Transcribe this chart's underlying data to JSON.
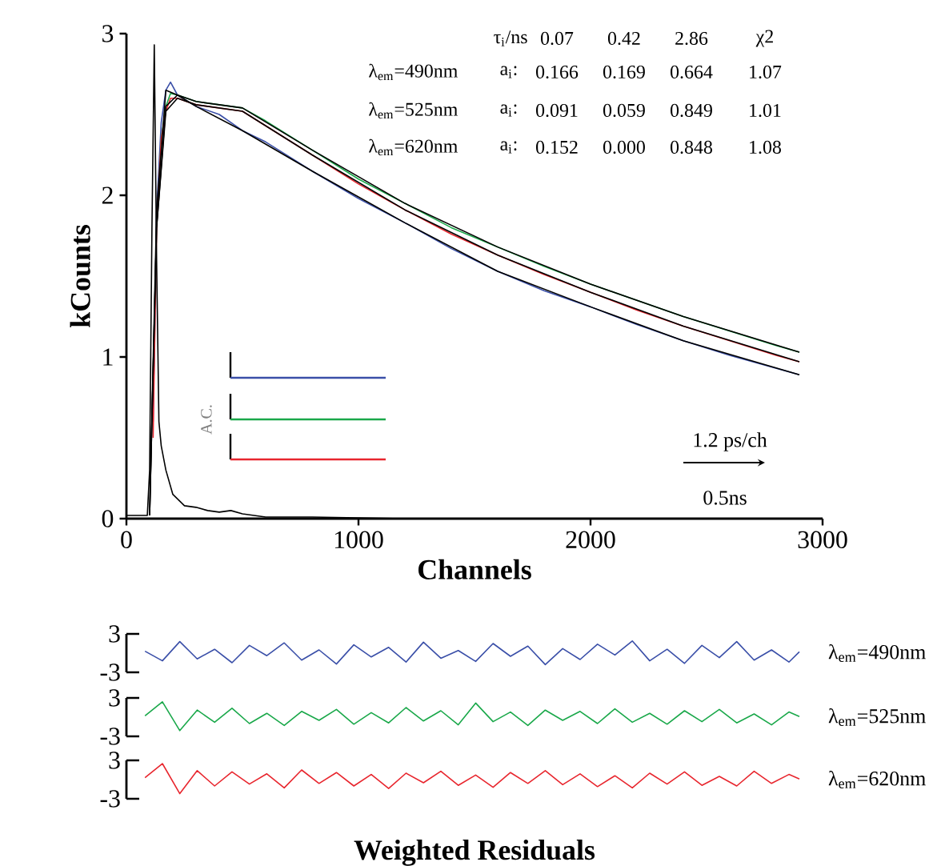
{
  "chart_data": [
    {
      "type": "line",
      "xlabel": "Channels",
      "ylabel": "kCounts",
      "xlim": [
        0,
        3000
      ],
      "ylim": [
        0,
        3
      ],
      "xticks": [
        0,
        1000,
        2000,
        3000
      ],
      "yticks": [
        0,
        1,
        2,
        3
      ],
      "annotations": [
        "τ$_{i}$/ns",
        "0.07",
        "0.42",
        "2.86",
        "χ2",
        "λ$_{em}$=490nm",
        "a$_{i}$:",
        "0.166",
        "0.169",
        "0.664",
        "1.07",
        "λ$_{em}$=525nm",
        "a$_{i}$:",
        "0.091",
        "0.059",
        "0.849",
        "1.01",
        "λ$_{em}$=620nm",
        "a$_{i}$:",
        "0.152",
        "0.000",
        "0.848",
        "1.08",
        "1.2 ps/ch",
        "0.5ns",
        "A.C."
      ],
      "series": [
        {
          "color": "#3a4fa8",
          "x": [
            115,
            130,
            150,
            170,
            190,
            220,
            300,
            400,
            500,
            600,
            800,
            1000,
            1200,
            1400,
            1600,
            1800,
            2000,
            2200,
            2400,
            2600,
            2800,
            2900
          ],
          "values": [
            0.6,
            1.9,
            2.45,
            2.65,
            2.7,
            2.62,
            2.55,
            2.5,
            2.4,
            2.33,
            2.15,
            1.98,
            1.83,
            1.67,
            1.53,
            1.41,
            1.31,
            1.2,
            1.1,
            1.01,
            0.93,
            0.89
          ]
        },
        {
          "color": "#1aa84a",
          "x": [
            130,
            150,
            170,
            190,
            220,
            300,
            400,
            500,
            600,
            800,
            1000,
            1200,
            1400,
            1600,
            1800,
            2000,
            2200,
            2400,
            2600,
            2800,
            2900
          ],
          "values": [
            1.8,
            2.35,
            2.55,
            2.63,
            2.62,
            2.58,
            2.56,
            2.54,
            2.46,
            2.28,
            2.1,
            1.95,
            1.8,
            1.68,
            1.56,
            1.45,
            1.35,
            1.25,
            1.16,
            1.07,
            1.03
          ]
        },
        {
          "color": "#e8262e",
          "x": [
            115,
            130,
            150,
            170,
            190,
            220,
            300,
            400,
            500,
            600,
            800,
            1000,
            1200,
            1400,
            1600,
            1800,
            2000,
            2200,
            2400,
            2600,
            2800,
            2900
          ],
          "values": [
            0.5,
            1.8,
            2.35,
            2.52,
            2.6,
            2.6,
            2.56,
            2.54,
            2.52,
            2.43,
            2.25,
            2.07,
            1.91,
            1.76,
            1.63,
            1.51,
            1.4,
            1.29,
            1.19,
            1.1,
            1.01,
            0.97
          ]
        },
        {
          "color": "#000000",
          "x": [
            100,
            130,
            170,
            220,
            300,
            500,
            800,
            1200,
            1600,
            2000,
            2400,
            2900
          ],
          "values": [
            0.02,
            1.9,
            2.65,
            2.62,
            2.55,
            2.4,
            2.15,
            1.83,
            1.53,
            1.31,
            1.1,
            0.89
          ]
        },
        {
          "color": "#000000",
          "x": [
            100,
            130,
            170,
            220,
            300,
            500,
            800,
            1200,
            1600,
            2000,
            2400,
            2900
          ],
          "values": [
            0.02,
            1.8,
            2.55,
            2.62,
            2.58,
            2.54,
            2.28,
            1.95,
            1.68,
            1.45,
            1.25,
            1.03
          ]
        },
        {
          "color": "#000000",
          "x": [
            100,
            130,
            170,
            220,
            300,
            500,
            800,
            1200,
            1600,
            2000,
            2400,
            2900
          ],
          "values": [
            0.02,
            1.8,
            2.52,
            2.6,
            2.56,
            2.52,
            2.25,
            1.91,
            1.63,
            1.4,
            1.19,
            0.97
          ]
        },
        {
          "color": "#000000",
          "x": [
            0,
            90,
            100,
            110,
            120,
            130,
            140,
            150,
            170,
            200,
            250,
            300,
            350,
            400,
            450,
            500,
            600,
            800,
            1200,
            2900
          ],
          "values": [
            0.02,
            0.02,
            0.3,
            1.8,
            2.93,
            1.6,
            0.6,
            0.45,
            0.3,
            0.15,
            0.08,
            0.07,
            0.05,
            0.04,
            0.05,
            0.03,
            0.01,
            0.01,
            0,
            0
          ]
        }
      ]
    },
    {
      "type": "line",
      "tick_labels": "y",
      "xlim": [
        0,
        3000
      ],
      "ylim": [
        -3,
        3
      ],
      "yticks": [
        -3,
        3
      ],
      "series": [
        {
          "name": "λ$_{em}$=490nm",
          "color": "#3a4fa8",
          "x": [
            80,
            155,
            230,
            305,
            380,
            455,
            530,
            605,
            680,
            755,
            830,
            905,
            980,
            1055,
            1130,
            1205,
            1280,
            1355,
            1430,
            1505,
            1580,
            1655,
            1730,
            1805,
            1880,
            1955,
            2030,
            2105,
            2180,
            2255,
            2330,
            2405,
            2480,
            2555,
            2630,
            2705,
            2780,
            2855,
            2900
          ],
          "values": [
            0.3,
            -1.2,
            1.8,
            -0.9,
            0.6,
            -1.5,
            1.2,
            -0.4,
            1.6,
            -1.1,
            0.5,
            -1.7,
            1.3,
            -0.6,
            0.9,
            -1.4,
            1.7,
            -0.8,
            0.4,
            -1.3,
            1.5,
            -0.5,
            1.1,
            -1.8,
            0.7,
            -1.0,
            1.4,
            -0.3,
            1.9,
            -1.2,
            0.6,
            -1.6,
            1.2,
            -0.7,
            1.8,
            -1.1,
            0.5,
            -1.4,
            0.2
          ]
        }
      ]
    },
    {
      "type": "line",
      "tick_labels": "y",
      "xlim": [
        0,
        3000
      ],
      "ylim": [
        -3,
        3
      ],
      "yticks": [
        -3,
        3
      ],
      "series": [
        {
          "name": "λ$_{em}$=525nm",
          "color": "#1aa84a",
          "x": [
            80,
            155,
            230,
            305,
            380,
            455,
            530,
            605,
            680,
            755,
            830,
            905,
            980,
            1055,
            1130,
            1205,
            1280,
            1355,
            1430,
            1505,
            1580,
            1655,
            1730,
            1805,
            1880,
            1955,
            2030,
            2105,
            2180,
            2255,
            2330,
            2405,
            2480,
            2555,
            2630,
            2705,
            2780,
            2855,
            2900
          ],
          "values": [
            0.2,
            2.4,
            -2.1,
            1.1,
            -0.8,
            1.4,
            -1.0,
            0.6,
            -1.3,
            0.9,
            -0.5,
            1.2,
            -1.1,
            0.7,
            -0.9,
            1.5,
            -0.6,
            1.0,
            -1.2,
            2.2,
            -0.7,
            0.8,
            -1.3,
            1.1,
            -0.5,
            0.9,
            -1.0,
            1.3,
            -0.8,
            0.6,
            -1.1,
            1.0,
            -0.7,
            1.2,
            -0.9,
            0.5,
            -1.2,
            0.8,
            0.1
          ]
        }
      ]
    },
    {
      "type": "line",
      "tick_labels": "y",
      "xlim": [
        0,
        3000
      ],
      "ylim": [
        -3,
        3
      ],
      "yticks": [
        -3,
        3
      ],
      "xlabel": "Weighted Residuals",
      "series": [
        {
          "name": "λ$_{em}$=620nm",
          "color": "#e8262e",
          "x": [
            80,
            155,
            230,
            305,
            380,
            455,
            530,
            605,
            680,
            755,
            830,
            905,
            980,
            1055,
            1130,
            1205,
            1280,
            1355,
            1430,
            1505,
            1580,
            1655,
            1730,
            1805,
            1880,
            1955,
            2030,
            2105,
            2180,
            2255,
            2330,
            2405,
            2480,
            2555,
            2630,
            2705,
            2780,
            2855,
            2900
          ],
          "values": [
            0.3,
            2.5,
            -2.2,
            1.4,
            -1.0,
            1.2,
            -0.7,
            0.9,
            -1.3,
            1.5,
            -0.6,
            1.1,
            -1.0,
            0.8,
            -1.4,
            1.0,
            -0.5,
            1.3,
            -0.9,
            0.7,
            -1.2,
            1.1,
            -0.6,
            1.4,
            -0.8,
            0.9,
            -1.1,
            0.6,
            -1.3,
            1.0,
            -0.7,
            1.2,
            -0.9,
            0.5,
            -1.0,
            1.3,
            -0.6,
            0.8,
            0.1
          ]
        }
      ]
    }
  ]
}
